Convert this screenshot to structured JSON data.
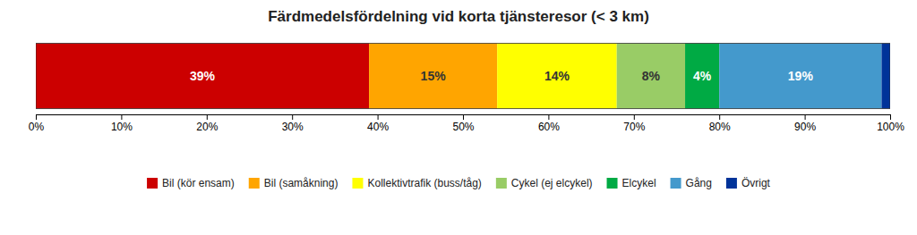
{
  "chart_data": {
    "type": "bar",
    "orientation": "horizontal",
    "stacked": true,
    "title": "Färdmedelsfördelning vid korta tjänsteresor (< 3 km)",
    "categories": [
      null
    ],
    "series": [
      {
        "name": "Bil (kör ensam)",
        "color": "#CC0000",
        "values": [
          39
        ],
        "value_labels": [
          "39%"
        ]
      },
      {
        "name": "Bil (samåkning)",
        "color": "#FFA500",
        "values": [
          15
        ],
        "value_labels": [
          "15%"
        ]
      },
      {
        "name": "Kollektivtrafik (buss/tåg)",
        "color": "#FFFF00",
        "values": [
          14
        ],
        "value_labels": [
          "14%"
        ]
      },
      {
        "name": "Cykel (ej elcykel)",
        "color": "#99CC66",
        "values": [
          8
        ],
        "value_labels": [
          "8%"
        ]
      },
      {
        "name": "Elcykel",
        "color": "#00AA44",
        "values": [
          4
        ],
        "value_labels": [
          "4%"
        ]
      },
      {
        "name": "Gång",
        "color": "#4499CC",
        "values": [
          19
        ],
        "value_labels": [
          "19%"
        ]
      },
      {
        "name": "Övrigt",
        "color": "#003399",
        "values": [
          1
        ]
      }
    ],
    "xlim": [
      0,
      100
    ],
    "xticks": [
      {
        "value": 0,
        "label": "0%"
      },
      {
        "value": 10,
        "label": "10%"
      },
      {
        "value": 20,
        "label": "20%"
      },
      {
        "value": 30,
        "label": "30%"
      },
      {
        "value": 40,
        "label": "40%"
      },
      {
        "value": 50,
        "label": "50%"
      },
      {
        "value": 60,
        "label": "60%"
      },
      {
        "value": 70,
        "label": "70%"
      },
      {
        "value": 80,
        "label": "80%"
      },
      {
        "value": 90,
        "label": "90%"
      },
      {
        "value": 100,
        "label": "100%"
      }
    ],
    "data_labels": true,
    "tick_labels": "x",
    "grid": false,
    "legend": "bottom"
  }
}
